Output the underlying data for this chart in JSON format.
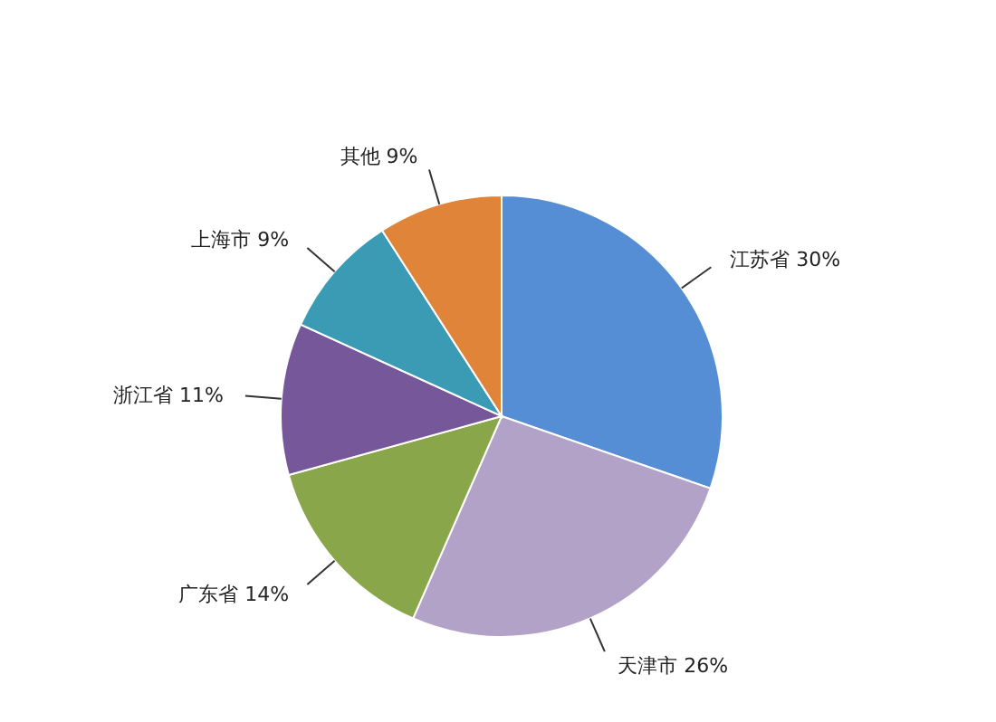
{
  "chart_data": {
    "type": "pie",
    "categories": [
      "江苏省",
      "天津市",
      "广东省",
      "浙江省",
      "上海市",
      "其他"
    ],
    "values": [
      30,
      26,
      14,
      11,
      9,
      9
    ],
    "value_labels": [
      "30%",
      "26%",
      "14%",
      "11%",
      "9%",
      "9%"
    ],
    "colors": [
      "#558ed5",
      "#b3a2c7",
      "#8aa64b",
      "#76579a",
      "#3b9bb5",
      "#e0843a"
    ],
    "legend": false
  }
}
